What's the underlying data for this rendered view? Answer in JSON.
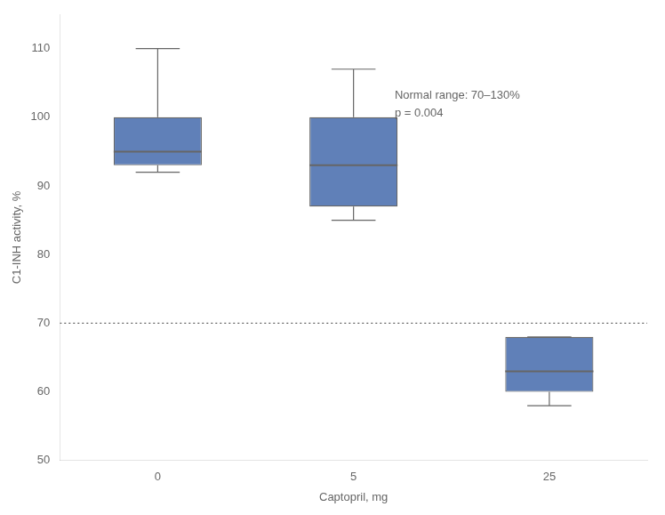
{
  "chart_data": {
    "type": "box",
    "categories": [
      "0",
      "5",
      "25"
    ],
    "boxes": [
      {
        "med": 95,
        "q1": 93,
        "q3": 100,
        "whislo": 92,
        "whishi": 110
      },
      {
        "med": 93,
        "q1": 87,
        "q3": 100,
        "whislo": 85,
        "whishi": 107
      },
      {
        "med": 63,
        "q1": 60,
        "q3": 68,
        "whislo": 58,
        "whishi": 68
      }
    ],
    "xlabel": "Captopril, mg",
    "ylabel": "C1-INH activity, %",
    "ylim": [
      50,
      115
    ],
    "yticks": [
      50,
      60,
      70,
      80,
      90,
      100,
      110
    ],
    "reference_line": 70,
    "annotations": [
      "Normal range: 70–130%",
      "p = 0.004"
    ],
    "color": "#6080b8",
    "grid": false
  }
}
